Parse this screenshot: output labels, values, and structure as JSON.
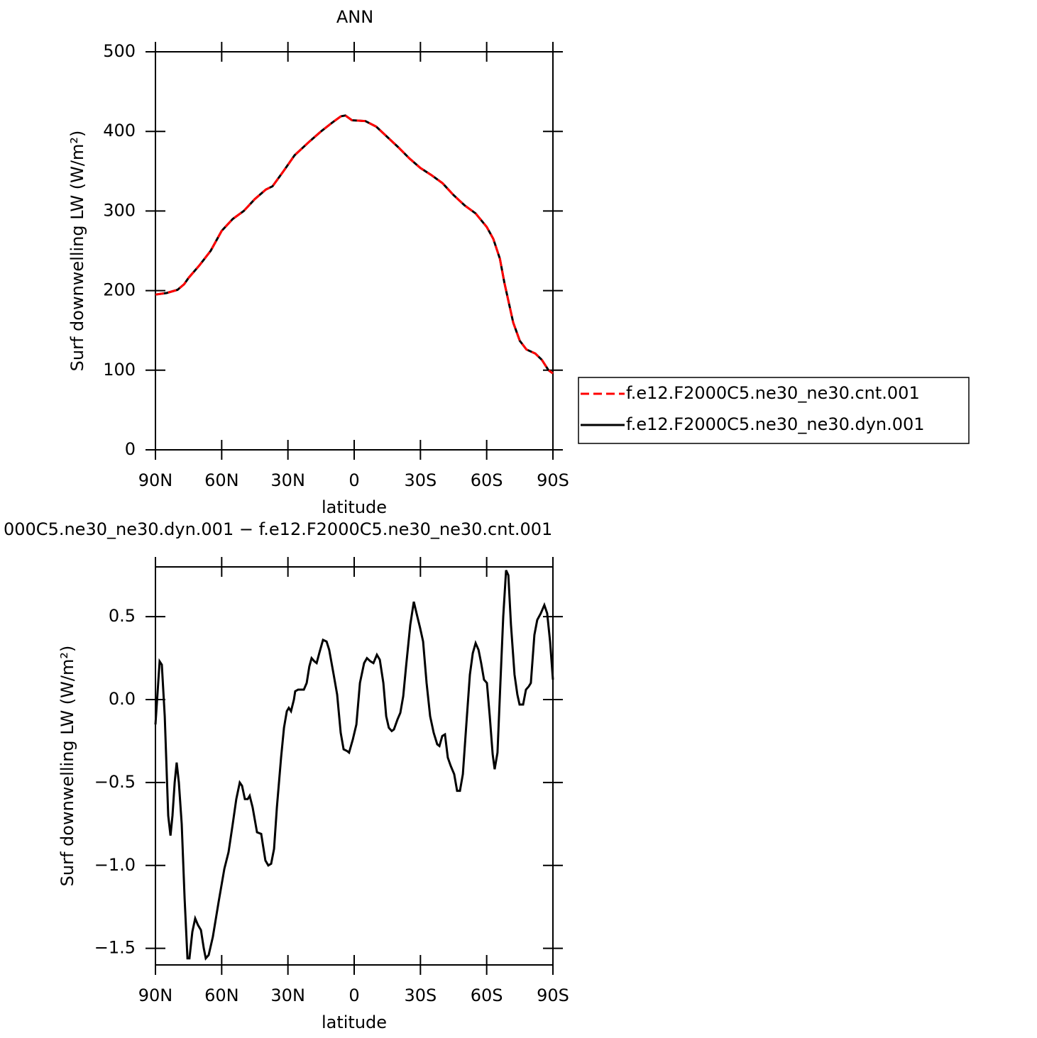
{
  "chart_data": [
    {
      "type": "line",
      "title": "ANN",
      "xlabel": "latitude",
      "ylabel": "Surf downwelling LW (W/m²)",
      "x": [
        90,
        85,
        80,
        77,
        75,
        70,
        65,
        60,
        55,
        50,
        45,
        40,
        37,
        32,
        27,
        20,
        15,
        10,
        6,
        4,
        1,
        -5,
        -10,
        -15,
        -20,
        -25,
        -30,
        -35,
        -40,
        -45,
        -50,
        -55,
        -60,
        -63,
        -66,
        -68,
        -70,
        -72,
        -75,
        -78,
        -82,
        -85,
        -88,
        -90
      ],
      "series": [
        {
          "name": "f.e12.F2000C5.ne30_ne30.cnt.001",
          "color": "#ff0000",
          "style": "dashed",
          "values": [
            195,
            197,
            201,
            208,
            216,
            232,
            250,
            275,
            290,
            300,
            315,
            327,
            331,
            350,
            370,
            388,
            400,
            411,
            419,
            420,
            414,
            413,
            406,
            393,
            380,
            366,
            354,
            345,
            335,
            320,
            307,
            297,
            280,
            265,
            240,
            210,
            185,
            160,
            137,
            126,
            121,
            113,
            100,
            96
          ]
        },
        {
          "name": "f.e12.F2000C5.ne30_ne30.dyn.001",
          "color": "#000000",
          "style": "solid",
          "values": [
            195,
            197,
            201,
            208,
            216,
            232,
            250,
            275,
            290,
            300,
            315,
            327,
            331,
            350,
            370,
            388,
            400,
            411,
            419,
            420,
            414,
            413,
            406,
            393,
            380,
            366,
            354,
            345,
            335,
            320,
            307,
            297,
            280,
            265,
            240,
            210,
            185,
            160,
            137,
            126,
            121,
            113,
            100,
            96
          ]
        }
      ],
      "xlim": [
        90,
        -90
      ],
      "xticks": [
        {
          "value": 90,
          "label": "90N"
        },
        {
          "value": 60,
          "label": "60N"
        },
        {
          "value": 30,
          "label": "30N"
        },
        0,
        {
          "value": -30,
          "label": "30S"
        },
        {
          "value": -60,
          "label": "60S"
        },
        {
          "value": -90,
          "label": "90S"
        }
      ],
      "ylim": [
        0,
        500
      ],
      "yticks": [
        0,
        100,
        200,
        300,
        400,
        500
      ],
      "legend": "right"
    },
    {
      "type": "line",
      "title": "000C5.ne30_ne30.dyn.001 − f.e12.F2000C5.ne30_ne30.cnt.001",
      "xlabel": "latitude",
      "ylabel": "Surf downwelling LW (W/m²)",
      "x": [
        90,
        88.1,
        87.1,
        85.8,
        84.2,
        83.2,
        82.3,
        81.3,
        80.4,
        79.4,
        78.1,
        76.8,
        75.5,
        74.6,
        73.3,
        72,
        70.7,
        69.4,
        68.1,
        67.2,
        65.9,
        64,
        61.4,
        58.8,
        56.9,
        55,
        53.4,
        51.8,
        50.8,
        49.5,
        48.2,
        47.3,
        46,
        44,
        42.1,
        40.2,
        38.9,
        37.6,
        36.3,
        35,
        33.1,
        31.8,
        30.5,
        29.6,
        28.6,
        27.3,
        26.7,
        25.4,
        22.8,
        21.5,
        20.3,
        19.3,
        18,
        17,
        15.8,
        14.1,
        12.5,
        11.3,
        9.3,
        7.7,
        6.1,
        4.8,
        3.2,
        2.3,
        0.6,
        -1,
        -2.6,
        -4.5,
        -5.8,
        -7.4,
        -8.7,
        -10.3,
        -11.6,
        -13.2,
        -14.5,
        -15.7,
        -17,
        -18,
        -19.6,
        -20.9,
        -22.2,
        -23.5,
        -25.4,
        -27,
        -28.6,
        -29.9,
        -31.2,
        -32.8,
        -34.4,
        -36,
        -37.6,
        -38.6,
        -39.9,
        -41.1,
        -42.4,
        -43.7,
        -45.3,
        -46.6,
        -47.9,
        -49.2,
        -50.8,
        -52.4,
        -53.7,
        -55,
        -56.3,
        -57.5,
        -58.8,
        -60.1,
        -61.4,
        -62.7,
        -63.6,
        -64.9,
        -66.2,
        -67.5,
        -68.8,
        -69.8,
        -71,
        -72.6,
        -73.9,
        -74.9,
        -76.5,
        -77.8,
        -79.1,
        -80,
        -81.6,
        -82.9,
        -84.5,
        -86.1,
        -87.4,
        -88.7,
        -90
      ],
      "series": [
        {
          "color": "#000000",
          "style": "solid",
          "values": [
            -0.15,
            0.23,
            0.21,
            -0.1,
            -0.7,
            -0.82,
            -0.7,
            -0.5,
            -0.38,
            -0.5,
            -0.75,
            -1.2,
            -1.56,
            -1.56,
            -1.4,
            -1.32,
            -1.36,
            -1.39,
            -1.5,
            -1.56,
            -1.54,
            -1.43,
            -1.22,
            -1.02,
            -0.92,
            -0.75,
            -0.6,
            -0.5,
            -0.52,
            -0.6,
            -0.6,
            -0.58,
            -0.65,
            -0.8,
            -0.81,
            -0.97,
            -1.0,
            -0.99,
            -0.9,
            -0.65,
            -0.35,
            -0.17,
            -0.07,
            -0.05,
            -0.07,
            0,
            0.05,
            0.06,
            0.06,
            0.1,
            0.2,
            0.25,
            0.23,
            0.22,
            0.28,
            0.36,
            0.35,
            0.3,
            0.15,
            0.03,
            -0.2,
            -0.3,
            -0.31,
            -0.32,
            -0.24,
            -0.15,
            0.1,
            0.22,
            0.25,
            0.23,
            0.22,
            0.27,
            0.24,
            0.1,
            -0.1,
            -0.17,
            -0.19,
            -0.18,
            -0.12,
            -0.08,
            0.02,
            0.2,
            0.45,
            0.59,
            0.5,
            0.43,
            0.35,
            0.1,
            -0.1,
            -0.2,
            -0.27,
            -0.28,
            -0.22,
            -0.21,
            -0.35,
            -0.4,
            -0.45,
            -0.55,
            -0.55,
            -0.45,
            -0.15,
            0.15,
            0.28,
            0.34,
            0.3,
            0.22,
            0.12,
            0.1,
            -0.1,
            -0.33,
            -0.42,
            -0.32,
            0.1,
            0.5,
            0.78,
            0.75,
            0.45,
            0.15,
            0.03,
            -0.03,
            -0.03,
            0.06,
            0.08,
            0.1,
            0.39,
            0.48,
            0.52,
            0.57,
            0.52,
            0.35,
            0.12
          ]
        }
      ],
      "xlim": [
        90,
        -90
      ],
      "xticks": [
        {
          "value": 90,
          "label": "90N"
        },
        {
          "value": 60,
          "label": "60N"
        },
        {
          "value": 30,
          "label": "30N"
        },
        0,
        {
          "value": -30,
          "label": "30S"
        },
        {
          "value": -60,
          "label": "60S"
        },
        {
          "value": -90,
          "label": "90S"
        }
      ],
      "ylim": [
        -1.6,
        0.8
      ],
      "yticks": [
        {
          "value": -1.5,
          "label": "−1.5"
        },
        {
          "value": -1.0,
          "label": "−1.0"
        },
        {
          "value": -0.5,
          "label": "−0.5"
        },
        {
          "value": 0.0,
          "label": "0.0"
        },
        0.5
      ]
    }
  ]
}
